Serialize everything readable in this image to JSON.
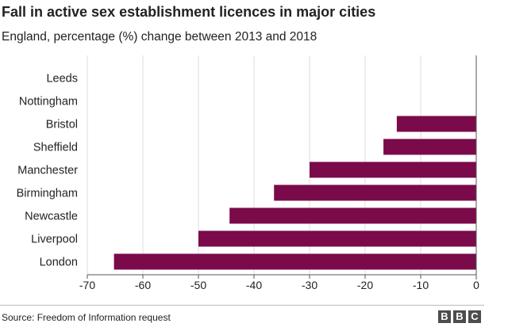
{
  "header": {
    "title": "Fall in active sex establishment licences in major cities",
    "subtitle": "England, percentage (%) change between 2013 and 2018"
  },
  "footer": {
    "source": "Source: Freedom of Information request",
    "logo_letters": [
      "B",
      "B",
      "C"
    ]
  },
  "colors": {
    "bar": "#7a0a4a",
    "grid": "#dddddd",
    "axis": "#555555"
  },
  "chart_data": {
    "type": "bar",
    "orientation": "horizontal",
    "title": "Fall in active sex establishment licences in major cities",
    "subtitle": "England, percentage (%) change between 2013 and 2018",
    "categories": [
      "Leeds",
      "Nottingham",
      "Bristol",
      "Sheffield",
      "Manchester",
      "Birmingham",
      "Newcastle",
      "Liverpool",
      "London"
    ],
    "values": [
      0,
      0,
      -14.3,
      -16.7,
      -30,
      -36.4,
      -44.4,
      -50,
      -65.2
    ],
    "xlim": [
      -70,
      0
    ],
    "xticks": [
      -70,
      -60,
      -50,
      -40,
      -30,
      -20,
      -10,
      0
    ],
    "grid": true,
    "legend": "none"
  }
}
